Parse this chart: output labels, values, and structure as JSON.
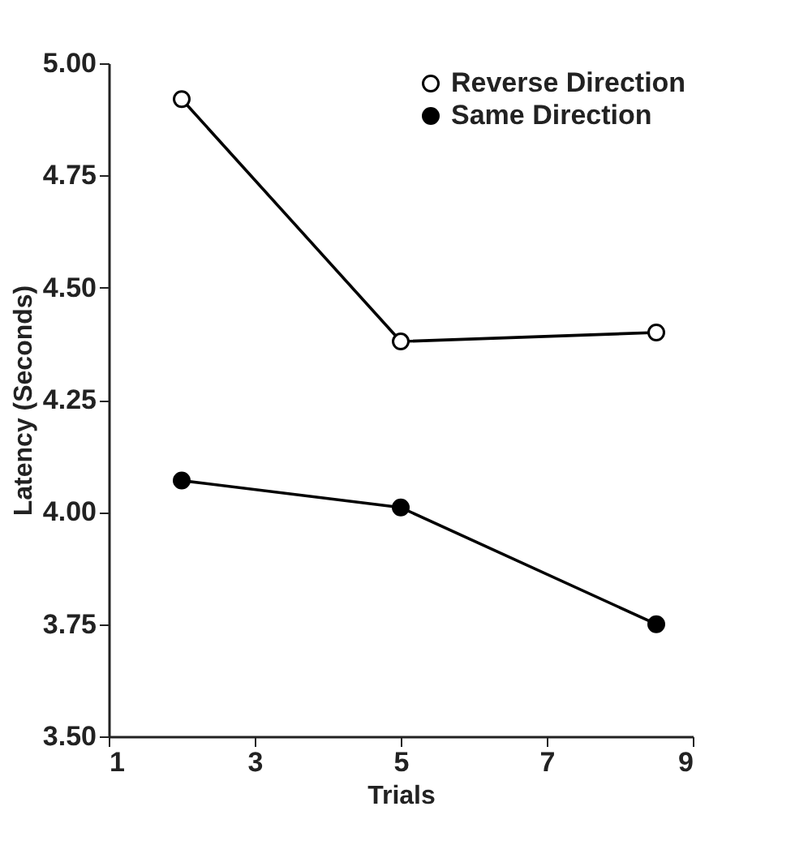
{
  "chart_data": {
    "type": "line",
    "xlabel": "Trials",
    "ylabel": "Latency  (Seconds)",
    "x": [
      2,
      5,
      8.5
    ],
    "series": [
      {
        "name": "Reverse Direction",
        "color": "#000000",
        "values": [
          4.92,
          4.38,
          4.4
        ]
      },
      {
        "name": "Same Direction",
        "color": "#000000",
        "values": [
          4.07,
          4.01,
          3.75
        ]
      }
    ],
    "xlim": [
      1,
      9
    ],
    "xticks": [
      1,
      3,
      5,
      7,
      9
    ],
    "ylim": [
      3.5,
      5
    ],
    "yticks": [
      {
        "value": 3.5,
        "label": "3.50"
      },
      {
        "value": 3.75,
        "label": "3.75"
      },
      {
        "value": 4,
        "label": "4.00"
      },
      {
        "value": 4.25,
        "label": "4.25"
      },
      {
        "value": 4.5,
        "label": "4.50"
      },
      {
        "value": 4.75,
        "label": "4.75"
      },
      {
        "value": 5,
        "label": "5.00"
      }
    ],
    "legend": "top right",
    "marker": "circle",
    "line_style": "solid"
  }
}
